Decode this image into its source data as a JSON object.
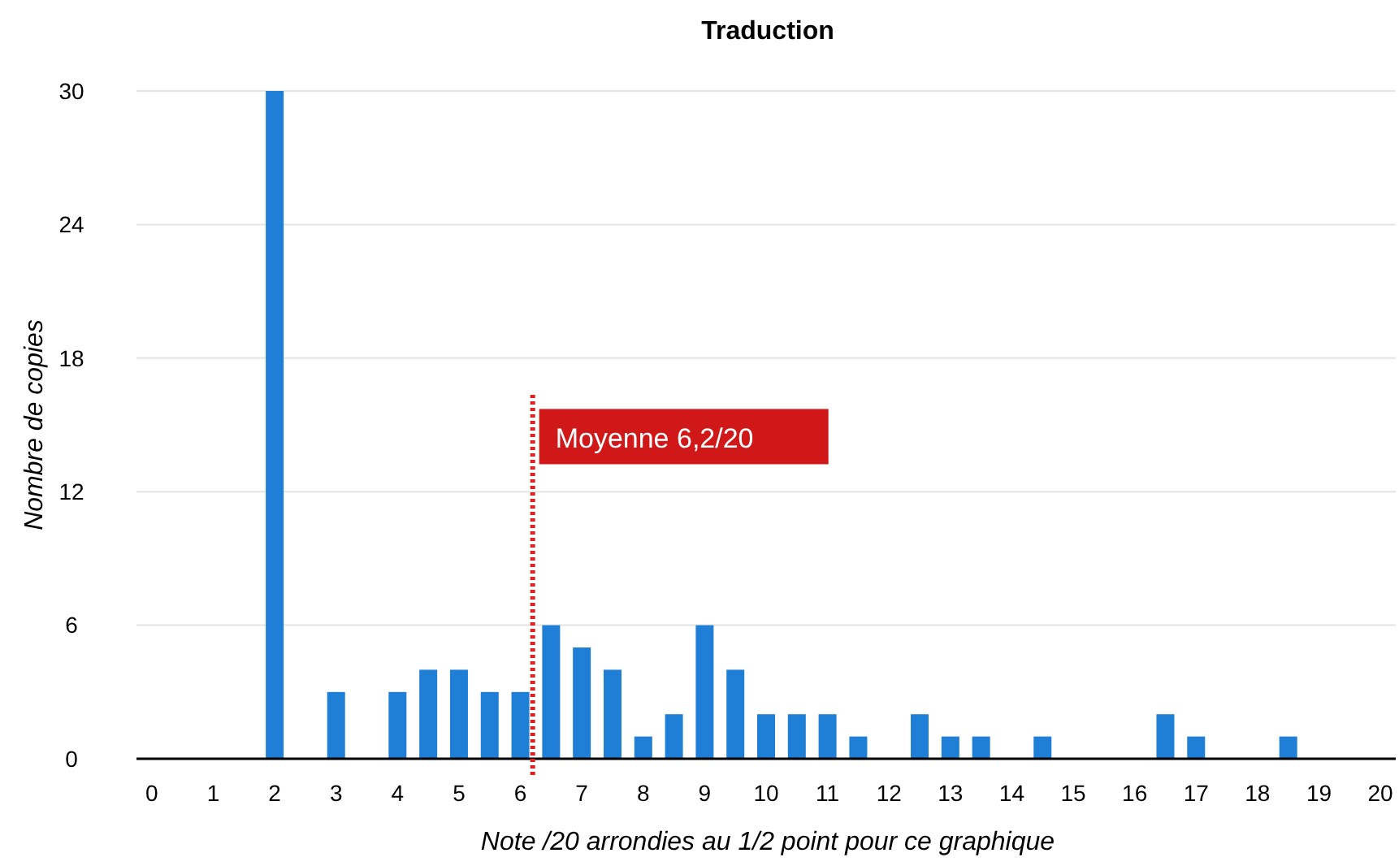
{
  "chart_data": {
    "type": "bar",
    "title": "Traduction",
    "xlabel": "Note /20 arrondies au 1/2 point pour ce graphique",
    "ylabel": "Nombre de copies",
    "x": [
      2,
      3,
      4,
      4.5,
      5,
      5.5,
      6,
      6.5,
      7,
      7.5,
      8,
      8.5,
      9,
      9.5,
      10,
      10.5,
      11,
      11.5,
      12.5,
      13,
      13.5,
      14.5,
      16.5,
      17,
      18.5
    ],
    "values": [
      30,
      3,
      3,
      4,
      4,
      3,
      3,
      6,
      5,
      4,
      1,
      2,
      6,
      4,
      2,
      2,
      2,
      1,
      2,
      1,
      1,
      1,
      2,
      1,
      1
    ],
    "color": "#1f7fd6",
    "xlim": [
      -0.25,
      20.25
    ],
    "xticks": [
      0,
      1,
      2,
      3,
      4,
      5,
      6,
      7,
      8,
      9,
      10,
      11,
      12,
      13,
      14,
      15,
      16,
      17,
      18,
      19,
      20
    ],
    "ylim": [
      0,
      30
    ],
    "yticks": [
      0,
      6,
      12,
      18,
      24,
      30
    ],
    "grid": "y",
    "ref_lines": [
      {
        "axis": "x",
        "value": 6.2,
        "label": "Moyenne 6,2/20",
        "color": "#e02020",
        "line_style": "dotted"
      }
    ]
  }
}
